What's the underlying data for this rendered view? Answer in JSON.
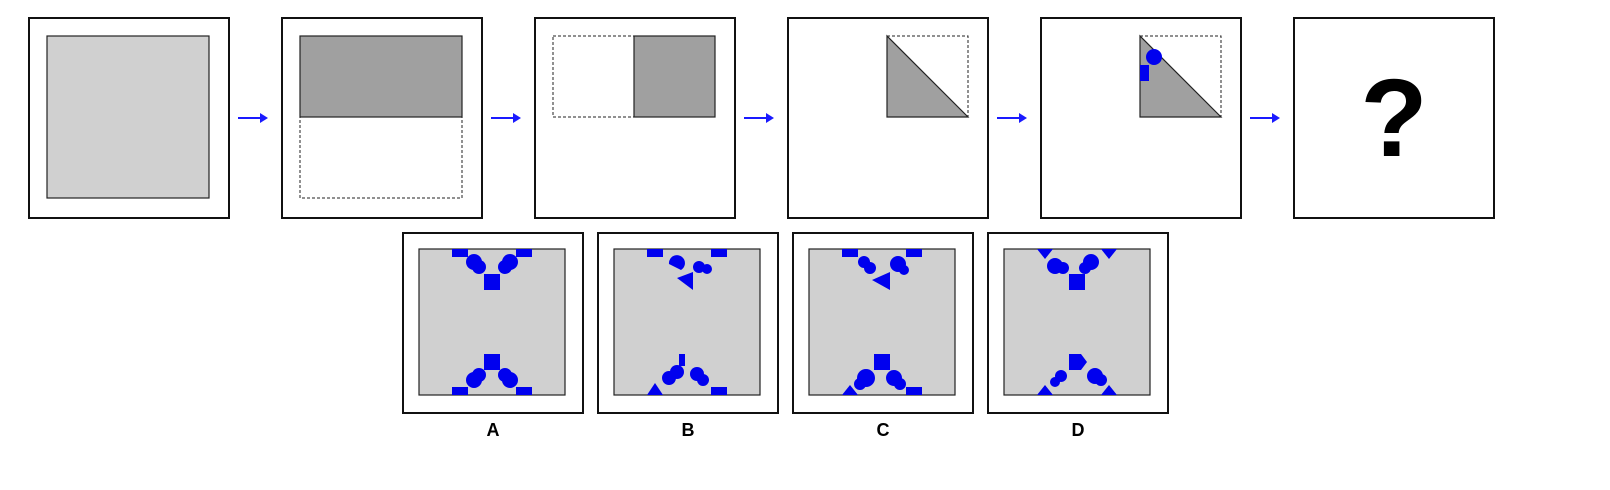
{
  "colors": {
    "paper": "#d0d0d0",
    "folded": "#a0a0a0",
    "hole": "#0000ee",
    "arrow": "#1a1aff",
    "border": "#111111"
  },
  "question_mark": "?",
  "options": [
    {
      "label": "A"
    },
    {
      "label": "B"
    },
    {
      "label": "C"
    },
    {
      "label": "D"
    }
  ]
}
